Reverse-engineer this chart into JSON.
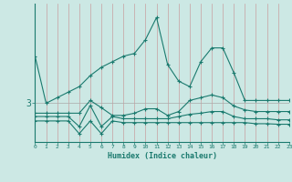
{
  "xlabel": "Humidex (Indice chaleur)",
  "background_color": "#cce8e4",
  "line_color": "#1a7a6e",
  "grid_color_v": "#c8a8a0",
  "x_ticks": [
    0,
    1,
    2,
    3,
    4,
    5,
    6,
    7,
    8,
    9,
    10,
    11,
    12,
    13,
    14,
    15,
    16,
    17,
    18,
    19,
    20,
    21,
    22,
    23
  ],
  "xlim": [
    0,
    23
  ],
  "ylim": [
    2.3,
    4.8
  ],
  "ytick_val": 3.0,
  "ytick_label": "3",
  "line1_x": [
    0,
    1,
    2,
    3,
    4,
    5,
    6,
    7,
    8,
    9,
    10,
    11,
    12,
    13,
    14,
    15,
    16,
    17,
    18,
    19,
    20,
    21,
    22,
    23
  ],
  "line1_y": [
    3.85,
    3.0,
    3.1,
    3.2,
    3.3,
    3.5,
    3.65,
    3.75,
    3.85,
    3.9,
    4.15,
    4.55,
    3.7,
    3.4,
    3.3,
    3.75,
    4.0,
    4.0,
    3.55,
    3.05,
    3.05,
    3.05,
    3.05,
    3.05
  ],
  "line2_x": [
    0,
    1,
    2,
    3,
    4,
    5,
    6,
    7,
    8,
    9,
    10,
    11,
    12,
    13,
    14,
    15,
    16,
    17,
    18,
    19,
    20,
    21,
    22,
    23
  ],
  "line2_y": [
    2.82,
    2.82,
    2.82,
    2.82,
    2.82,
    3.05,
    2.92,
    2.78,
    2.78,
    2.82,
    2.9,
    2.9,
    2.78,
    2.85,
    3.05,
    3.1,
    3.15,
    3.1,
    2.95,
    2.88,
    2.85,
    2.85,
    2.85,
    2.85
  ],
  "line3_x": [
    0,
    1,
    2,
    3,
    4,
    5,
    6,
    7,
    8,
    9,
    10,
    11,
    12,
    13,
    14,
    15,
    16,
    17,
    18,
    19,
    20,
    21,
    22,
    23
  ],
  "line3_y": [
    2.76,
    2.76,
    2.76,
    2.76,
    2.58,
    2.96,
    2.58,
    2.76,
    2.72,
    2.72,
    2.72,
    2.72,
    2.72,
    2.76,
    2.8,
    2.82,
    2.85,
    2.85,
    2.76,
    2.72,
    2.72,
    2.72,
    2.7,
    2.7
  ],
  "line4_x": [
    0,
    1,
    2,
    3,
    4,
    5,
    6,
    7,
    8,
    9,
    10,
    11,
    12,
    13,
    14,
    15,
    16,
    17,
    18,
    19,
    20,
    21,
    22,
    23
  ],
  "line4_y": [
    2.68,
    2.68,
    2.68,
    2.68,
    2.45,
    2.68,
    2.45,
    2.68,
    2.65,
    2.65,
    2.65,
    2.65,
    2.65,
    2.65,
    2.65,
    2.65,
    2.65,
    2.65,
    2.65,
    2.65,
    2.63,
    2.63,
    2.62,
    2.62
  ]
}
